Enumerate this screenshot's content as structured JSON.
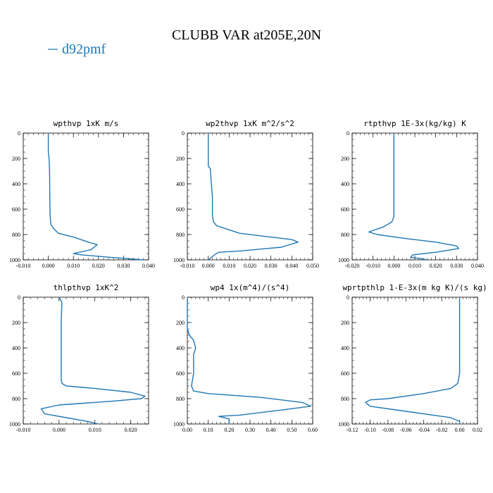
{
  "title": "CLUBB VAR at205E,20N",
  "legend": {
    "label": "d92pmf",
    "color": "#1f77b4"
  },
  "chart_data": [
    {
      "type": "line",
      "title": "wpthvp   1xK m/s",
      "xlim": [
        -0.01,
        0.04
      ],
      "ylim": [
        1000,
        0
      ],
      "xticks": [
        -0.01,
        0.0,
        0.01,
        0.02,
        0.03,
        0.04
      ],
      "xtick_labels": [
        "-0.010",
        "0.000",
        "0.010",
        "0.020",
        "0.030",
        "0.040"
      ],
      "yticks": [
        0,
        200,
        400,
        600,
        800,
        1000
      ],
      "ytick_labels": [
        "0",
        "200",
        "400",
        "600",
        "800",
        "1000"
      ],
      "series": [
        {
          "color": "#1f77b4",
          "x": [
            0.0,
            0.0,
            0.0003,
            0.0005,
            0.0006,
            0.0007,
            0.001,
            0.002,
            0.004,
            0.01,
            0.016,
            0.0195,
            0.017,
            0.01,
            0.013,
            0.025,
            0.038
          ],
          "y": [
            0,
            150,
            200,
            300,
            500,
            650,
            720,
            750,
            790,
            820,
            860,
            880,
            920,
            950,
            960,
            980,
            1000
          ]
        }
      ]
    },
    {
      "type": "line",
      "title": "wp2thvp   1xK m^2/s^2",
      "xlim": [
        -0.01,
        0.05
      ],
      "ylim": [
        1000,
        0
      ],
      "xticks": [
        -0.01,
        0.0,
        0.01,
        0.02,
        0.03,
        0.04,
        0.05
      ],
      "xtick_labels": [
        "-0.010",
        "0.000",
        "0.010",
        "0.020",
        "0.030",
        "0.040",
        "0.050"
      ],
      "yticks": [
        0,
        200,
        400,
        600,
        800,
        1000
      ],
      "ytick_labels": [
        "0",
        "200",
        "400",
        "600",
        "800",
        "1000"
      ],
      "series": [
        {
          "color": "#1f77b4",
          "x": [
            0.0,
            0.0,
            0.0,
            0.001,
            0.0015,
            0.002,
            0.002,
            0.0025,
            0.004,
            0.015,
            0.03,
            0.04,
            0.043,
            0.035,
            0.015,
            0.005,
            0.003,
            0.0
          ],
          "y": [
            0,
            150,
            260,
            280,
            400,
            500,
            650,
            700,
            730,
            790,
            820,
            840,
            860,
            900,
            930,
            940,
            960,
            1000
          ]
        }
      ]
    },
    {
      "type": "line",
      "title": "rtpthvp   1E-3x(kg/kg) K",
      "xlim": [
        -0.02,
        0.04
      ],
      "ylim": [
        1000,
        0
      ],
      "xticks": [
        -0.02,
        -0.01,
        0.0,
        0.01,
        0.02,
        0.03,
        0.04
      ],
      "xtick_labels": [
        "-0.020",
        "-0.010",
        "0.000",
        "0.010",
        "0.020",
        "0.030",
        "0.040"
      ],
      "yticks": [
        0,
        200,
        400,
        600,
        800,
        1000
      ],
      "ytick_labels": [
        "0",
        "200",
        "400",
        "600",
        "800",
        "1000"
      ],
      "series": [
        {
          "color": "#1f77b4",
          "x": [
            0.0,
            0.0,
            0.0,
            -0.001,
            -0.005,
            -0.012,
            -0.008,
            0.005,
            0.02,
            0.03,
            0.031,
            0.02,
            0.009,
            0.008,
            0.013,
            0.016
          ],
          "y": [
            0,
            400,
            660,
            700,
            740,
            780,
            800,
            830,
            860,
            890,
            910,
            940,
            960,
            980,
            990,
            1000
          ]
        }
      ]
    },
    {
      "type": "line",
      "title": "thlpthvp   1xK^2",
      "xlim": [
        -0.01,
        0.025
      ],
      "ylim": [
        1000,
        0
      ],
      "xticks": [
        -0.01,
        0.0,
        0.01,
        0.02
      ],
      "xtick_labels": [
        "-0.010",
        "0.000",
        "0.010",
        "0.020"
      ],
      "yticks": [
        0,
        200,
        400,
        600,
        800,
        1000
      ],
      "ytick_labels": [
        "0",
        "200",
        "400",
        "600",
        "800",
        "1000"
      ],
      "series": [
        {
          "color": "#1f77b4",
          "x": [
            0.0,
            0.0008,
            0.0006,
            0.0006,
            0.0006,
            0.0008,
            0.002,
            0.01,
            0.02,
            0.024,
            0.023,
            0.015,
            0.0,
            -0.005,
            -0.004,
            0.002,
            0.008,
            0.011
          ],
          "y": [
            0,
            40,
            200,
            400,
            650,
            680,
            700,
            720,
            750,
            780,
            800,
            820,
            850,
            880,
            920,
            950,
            980,
            1000
          ]
        }
      ]
    },
    {
      "type": "line",
      "title": "wp4   1x(m^4)/(s^4)",
      "xlim": [
        0.0,
        0.6
      ],
      "ylim": [
        1000,
        0
      ],
      "xticks": [
        0.0,
        0.1,
        0.2,
        0.3,
        0.4,
        0.5,
        0.6
      ],
      "xtick_labels": [
        "0.00",
        "0.10",
        "0.20",
        "0.30",
        "0.40",
        "0.50",
        "0.60"
      ],
      "yticks": [
        0,
        200,
        400,
        600,
        800,
        1000
      ],
      "ytick_labels": [
        "0",
        "200",
        "400",
        "600",
        "800",
        "1000"
      ],
      "series": [
        {
          "color": "#1f77b4",
          "x": [
            0.0,
            0.0,
            0.01,
            0.03,
            0.04,
            0.03,
            0.03,
            0.02,
            0.03,
            0.1,
            0.35,
            0.55,
            0.59,
            0.45,
            0.25,
            0.15,
            0.2,
            0.2
          ],
          "y": [
            0,
            250,
            300,
            340,
            400,
            450,
            600,
            700,
            740,
            760,
            790,
            830,
            860,
            890,
            930,
            940,
            960,
            1000
          ]
        }
      ]
    },
    {
      "type": "line",
      "title": "wprtpthlp   1-E-3x(m kg K)/(s kg)",
      "xlim": [
        -0.12,
        0.02
      ],
      "ylim": [
        1000,
        0
      ],
      "xticks": [
        -0.12,
        -0.1,
        -0.08,
        -0.06,
        -0.04,
        -0.02,
        0.0,
        0.02
      ],
      "xtick_labels": [
        "-0.12",
        "-0.10",
        "-0.08",
        "-0.06",
        "-0.04",
        "-0.02",
        "0.00",
        "0.02"
      ],
      "yticks": [
        0,
        200,
        400,
        600,
        800,
        1000
      ],
      "ytick_labels": [
        "0",
        "200",
        "400",
        "600",
        "800",
        "1000"
      ],
      "series": [
        {
          "color": "#1f77b4",
          "x": [
            0.0,
            0.0,
            0.0,
            -0.002,
            -0.01,
            -0.04,
            -0.08,
            -0.1,
            -0.105,
            -0.1,
            -0.06,
            -0.01,
            0.0,
            0.0
          ],
          "y": [
            0,
            300,
            600,
            680,
            720,
            760,
            800,
            810,
            830,
            860,
            900,
            950,
            980,
            1000
          ]
        }
      ]
    }
  ]
}
